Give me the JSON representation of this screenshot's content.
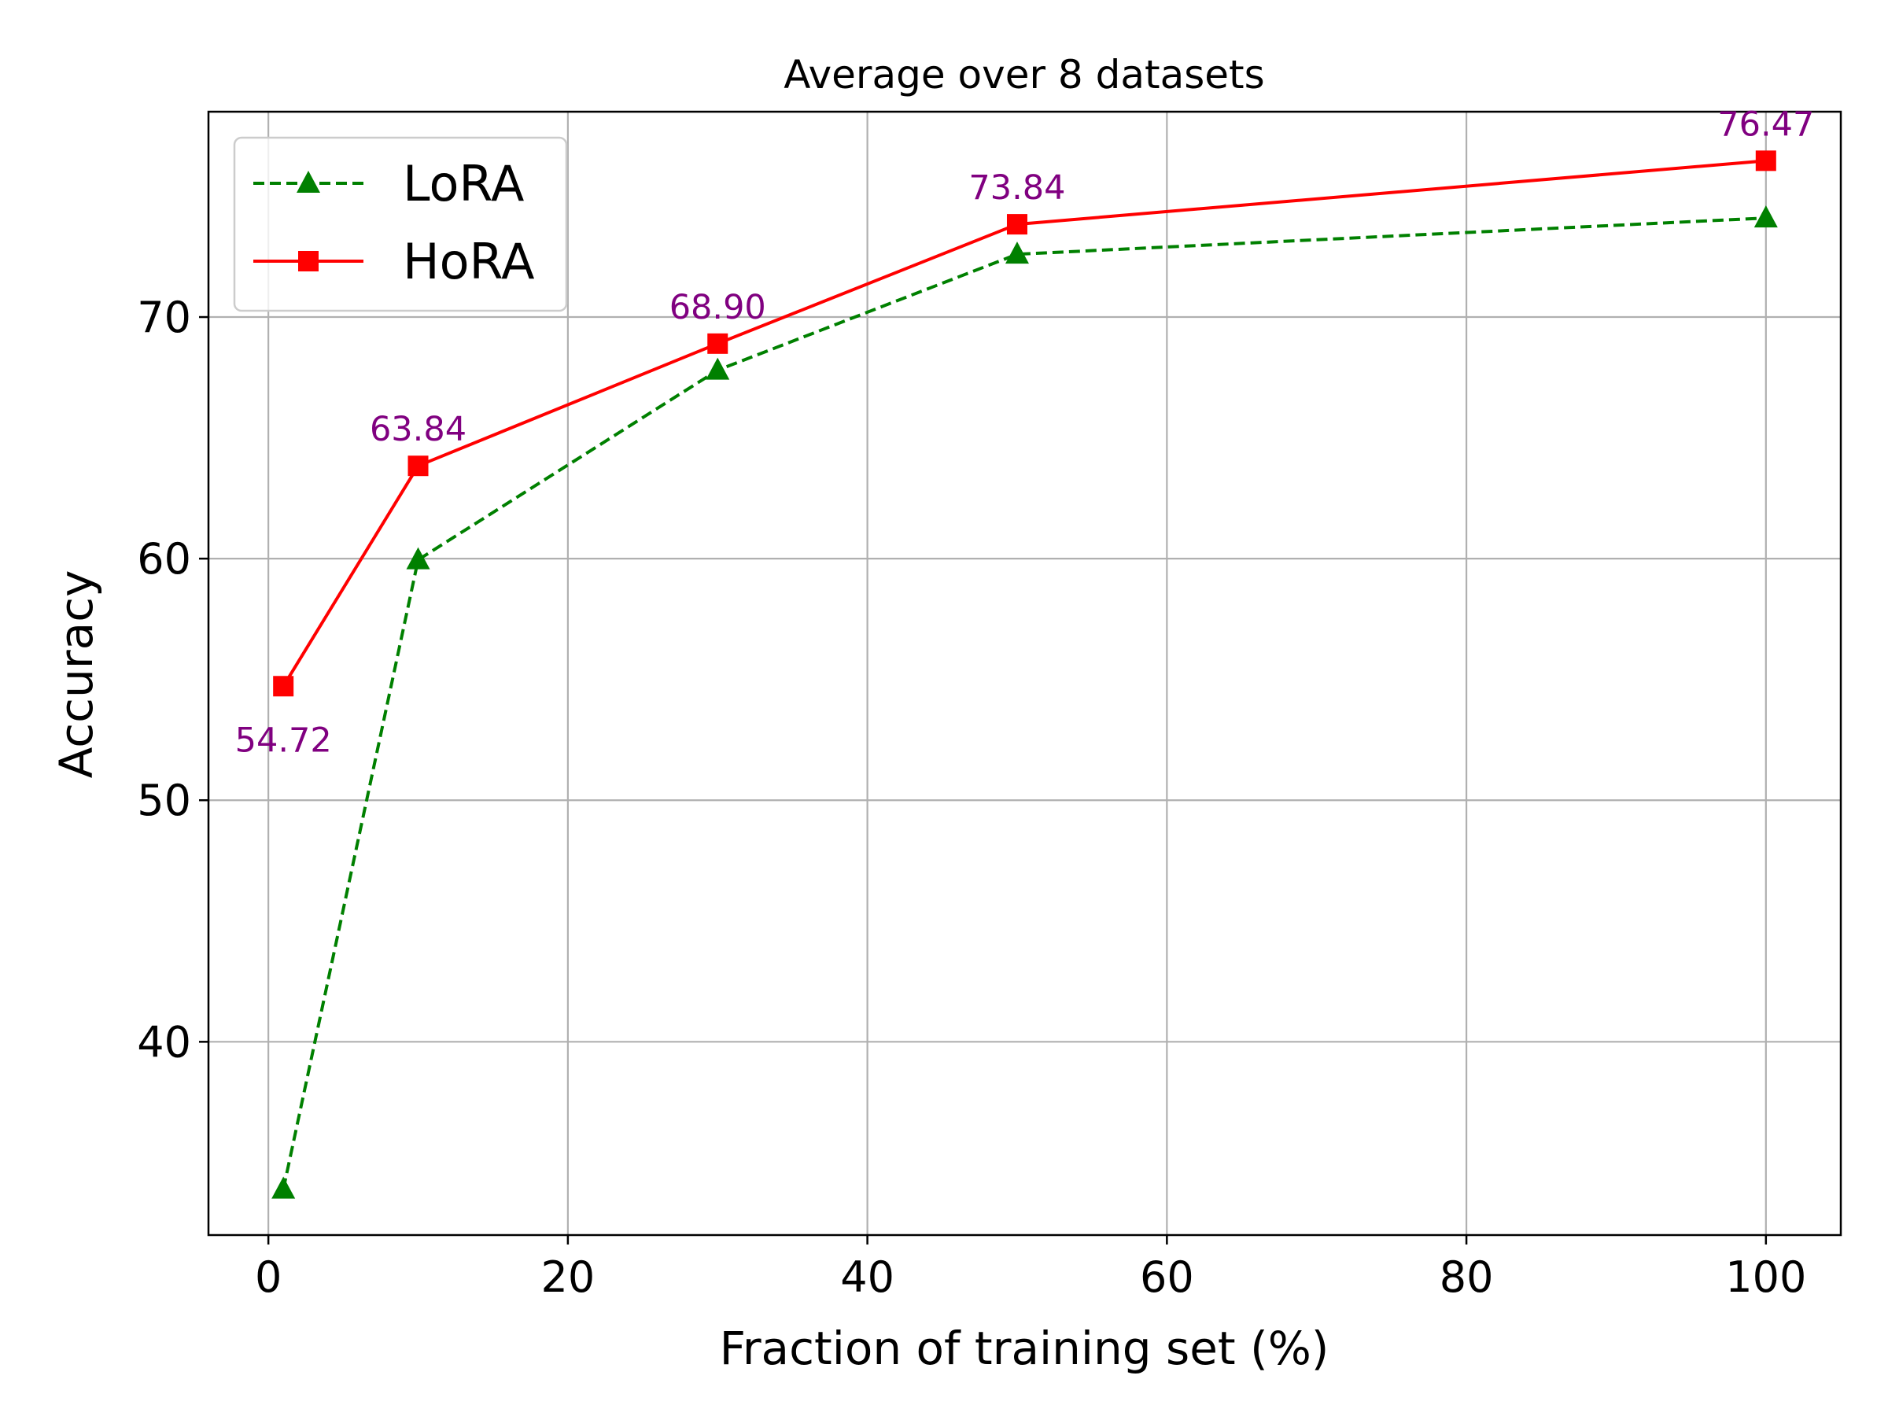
{
  "chart_data": {
    "type": "line",
    "title": "Average over 8 datasets",
    "xlabel": "Fraction of training set (%)",
    "ylabel": "Accuracy",
    "xlim": [
      -4,
      105
    ],
    "ylim": [
      32,
      78.5
    ],
    "xticks": [
      0,
      20,
      40,
      60,
      80,
      100
    ],
    "yticks": [
      40,
      50,
      60,
      70
    ],
    "grid": true,
    "legend_position": "upper-left",
    "x": [
      1,
      10,
      30,
      50,
      100
    ],
    "series": [
      {
        "name": "LoRA",
        "values": [
          33.9,
          59.95,
          67.8,
          72.6,
          74.1
        ],
        "color": "#008000",
        "line_style": "dashed",
        "marker": "triangle"
      },
      {
        "name": "HoRA",
        "values": [
          54.72,
          63.84,
          68.9,
          73.84,
          76.47
        ],
        "color": "#ff0000",
        "line_style": "solid",
        "marker": "square"
      }
    ],
    "annotations": {
      "series": "HoRA",
      "color": "#800080",
      "labels": [
        "54.72",
        "63.84",
        "68.90",
        "73.84",
        "76.47"
      ]
    }
  }
}
